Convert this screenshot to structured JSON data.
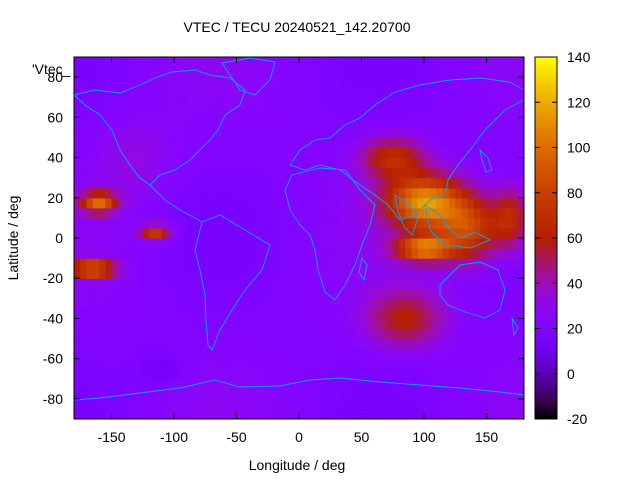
{
  "chart_data": {
    "type": "heatmap",
    "title": "VTEC / TECU 20240521_142.20700",
    "xlabel": "Longitude / deg",
    "ylabel": "Latitude / deg",
    "series_label": "'Vtec_",
    "xlim": [
      -180,
      180
    ],
    "ylim": [
      -90,
      90
    ],
    "xticks": [
      -150,
      -100,
      -50,
      0,
      50,
      100,
      150
    ],
    "yticks": [
      -80,
      -60,
      -40,
      -20,
      0,
      20,
      40,
      60,
      80
    ],
    "colorbar": {
      "range": [
        -20,
        140
      ],
      "ticks": [
        -20,
        0,
        20,
        40,
        60,
        80,
        100,
        120,
        140
      ],
      "palette": "gnuplot rgbformulae 7,5,15"
    },
    "background_level": 22,
    "features": [
      {
        "lon": 100,
        "lat": 18,
        "slon": 30,
        "slat": 13,
        "amp": 88
      },
      {
        "lon": 100,
        "lat": -5,
        "slon": 22,
        "slat": 6,
        "amp": 80
      },
      {
        "lon": 135,
        "lat": 5,
        "slon": 25,
        "slat": 16,
        "amp": 60
      },
      {
        "lon": 75,
        "lat": 40,
        "slon": 25,
        "slat": 10,
        "amp": 45
      },
      {
        "lon": 85,
        "lat": -40,
        "slon": 30,
        "slat": 14,
        "amp": 38
      },
      {
        "lon": 170,
        "lat": 10,
        "slon": 15,
        "slat": 15,
        "amp": 45
      },
      {
        "lon": -160,
        "lat": 18,
        "slon": 14,
        "slat": 5,
        "amp": 75
      },
      {
        "lon": -165,
        "lat": -15,
        "slon": 18,
        "slat": 4,
        "amp": 80
      },
      {
        "lon": -115,
        "lat": 3,
        "slon": 12,
        "slat": 4,
        "amp": 55
      },
      {
        "lon": -130,
        "lat": 40,
        "slon": 30,
        "slat": 20,
        "amp": 10
      },
      {
        "lon": -110,
        "lat": -65,
        "slon": 20,
        "slat": 8,
        "amp": -10
      }
    ],
    "legend": "none",
    "grid": false,
    "overlay": "coastlines"
  }
}
